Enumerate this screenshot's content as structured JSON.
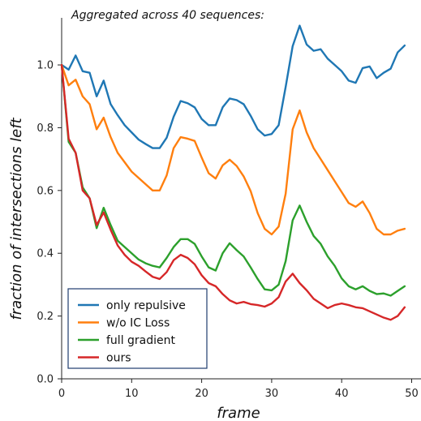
{
  "chart_data": {
    "type": "line",
    "title": "Aggregated across 40 sequences:",
    "xlabel": "frame",
    "ylabel": "fraction of intersections left",
    "xlim": [
      0,
      50
    ],
    "ylim": [
      0,
      1.15
    ],
    "xticks": [
      0,
      10,
      20,
      30,
      40,
      50
    ],
    "yticks": [
      0.0,
      0.2,
      0.4,
      0.6,
      0.8,
      1.0
    ],
    "xtick_labels": [
      "0",
      "10",
      "20",
      "30",
      "40",
      "50"
    ],
    "ytick_labels": [
      "0.0",
      "0.2",
      "0.4",
      "0.6",
      "0.8",
      "1.0"
    ],
    "grid": false,
    "legend_position": "bottom-left",
    "x": [
      0,
      1,
      2,
      3,
      4,
      5,
      6,
      7,
      8,
      9,
      10,
      11,
      12,
      13,
      14,
      15,
      16,
      17,
      18,
      19,
      20,
      21,
      22,
      23,
      24,
      25,
      26,
      27,
      28,
      29,
      30,
      31,
      32,
      33,
      34,
      35,
      36,
      37,
      38,
      39,
      40,
      41,
      42,
      43,
      44,
      45,
      46,
      47,
      48,
      49
    ],
    "series": [
      {
        "name": "only repulsive",
        "color": "#1f77b4",
        "values": [
          1.0,
          0.985,
          1.03,
          0.98,
          0.975,
          0.9,
          0.95,
          0.875,
          0.84,
          0.808,
          0.785,
          0.762,
          0.748,
          0.735,
          0.735,
          0.768,
          0.835,
          0.885,
          0.878,
          0.865,
          0.828,
          0.808,
          0.808,
          0.865,
          0.893,
          0.888,
          0.875,
          0.838,
          0.795,
          0.775,
          0.78,
          0.808,
          0.93,
          1.06,
          1.125,
          1.065,
          1.045,
          1.05,
          1.02,
          1.0,
          0.98,
          0.95,
          0.943,
          0.99,
          0.995,
          0.958,
          0.975,
          0.988,
          1.04,
          1.062
        ]
      },
      {
        "name": "w/o IC Loss",
        "color": "#ff7f0e",
        "values": [
          1.0,
          0.935,
          0.953,
          0.9,
          0.875,
          0.795,
          0.832,
          0.77,
          0.72,
          0.69,
          0.66,
          0.64,
          0.62,
          0.6,
          0.6,
          0.648,
          0.735,
          0.77,
          0.765,
          0.758,
          0.705,
          0.655,
          0.638,
          0.68,
          0.698,
          0.678,
          0.645,
          0.598,
          0.528,
          0.478,
          0.46,
          0.485,
          0.59,
          0.795,
          0.855,
          0.785,
          0.735,
          0.7,
          0.665,
          0.63,
          0.595,
          0.56,
          0.548,
          0.565,
          0.528,
          0.478,
          0.46,
          0.46,
          0.472,
          0.478
        ]
      },
      {
        "name": "full gradient",
        "color": "#2ca02c",
        "values": [
          1.0,
          0.755,
          0.72,
          0.61,
          0.575,
          0.48,
          0.545,
          0.49,
          0.44,
          0.42,
          0.4,
          0.38,
          0.368,
          0.36,
          0.355,
          0.385,
          0.42,
          0.445,
          0.445,
          0.43,
          0.39,
          0.355,
          0.345,
          0.4,
          0.432,
          0.41,
          0.39,
          0.355,
          0.318,
          0.285,
          0.282,
          0.3,
          0.375,
          0.505,
          0.552,
          0.5,
          0.455,
          0.43,
          0.39,
          0.36,
          0.32,
          0.295,
          0.285,
          0.295,
          0.28,
          0.27,
          0.272,
          0.265,
          0.28,
          0.295
        ]
      },
      {
        "name": "ours",
        "color": "#d62728",
        "values": [
          1.0,
          0.765,
          0.72,
          0.6,
          0.575,
          0.49,
          0.53,
          0.475,
          0.425,
          0.395,
          0.373,
          0.36,
          0.342,
          0.325,
          0.318,
          0.34,
          0.378,
          0.395,
          0.385,
          0.365,
          0.33,
          0.305,
          0.295,
          0.27,
          0.25,
          0.24,
          0.245,
          0.238,
          0.235,
          0.23,
          0.24,
          0.26,
          0.31,
          0.335,
          0.305,
          0.282,
          0.255,
          0.24,
          0.225,
          0.235,
          0.24,
          0.235,
          0.228,
          0.225,
          0.215,
          0.205,
          0.195,
          0.188,
          0.2,
          0.228
        ]
      }
    ]
  }
}
